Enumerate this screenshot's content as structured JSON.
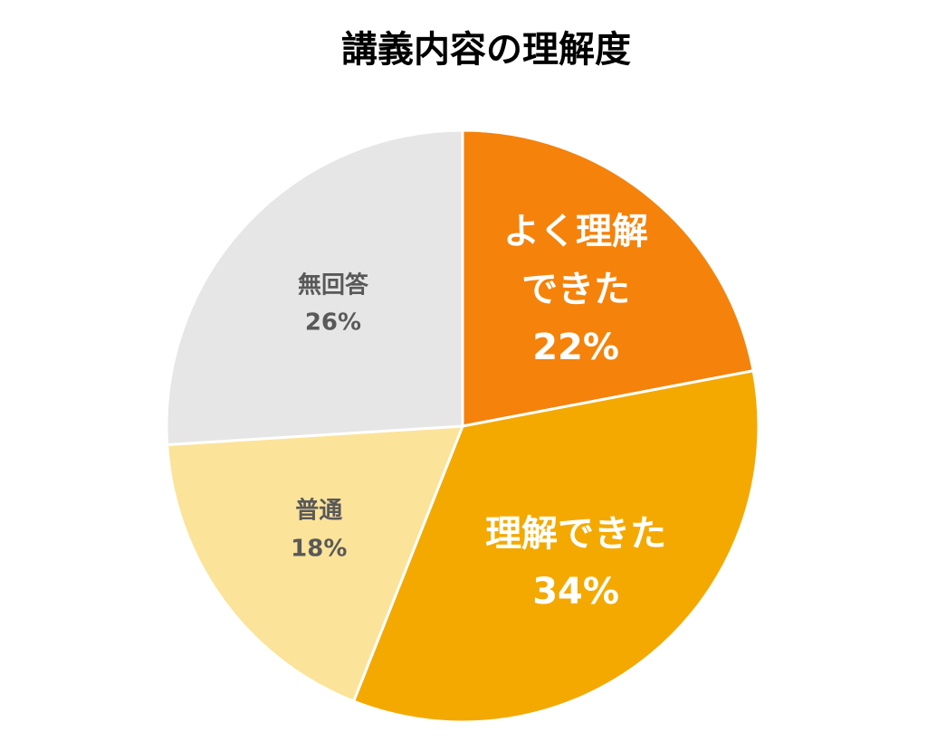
{
  "chart_data": {
    "type": "pie",
    "title": "講義内容の理解度",
    "categories": [
      "よく理解できた",
      "理解できた",
      "普通",
      "無回答"
    ],
    "values": [
      22,
      34,
      18,
      26
    ],
    "value_labels": [
      "22%",
      "34%",
      "18%",
      "26%"
    ],
    "colors": [
      "#f5820a",
      "#f4a900",
      "#fbe39a",
      "#e6e6e6"
    ]
  }
}
